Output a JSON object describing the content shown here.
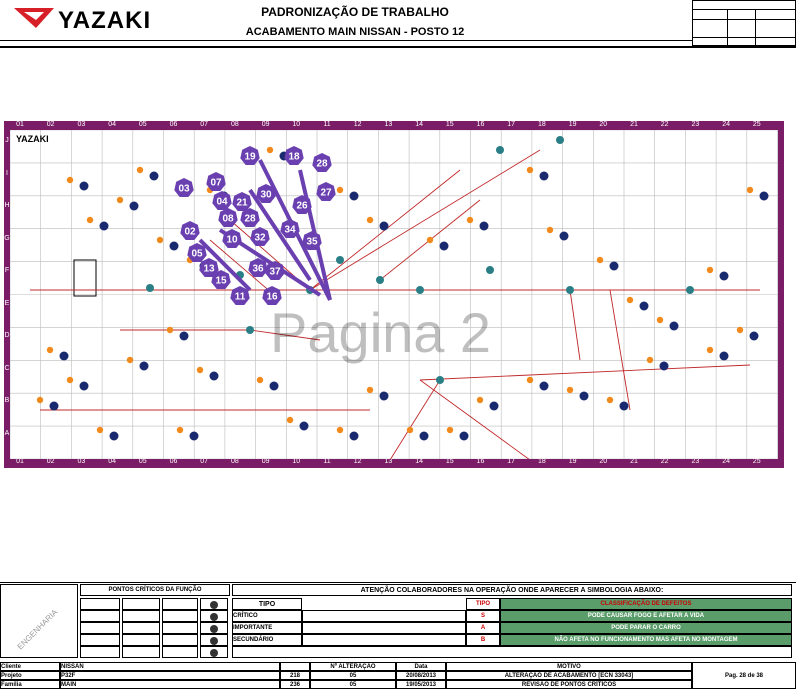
{
  "header": {
    "company": "YAZAKI",
    "title": "PADRONIZAÇÃO DE TRABALHO",
    "subtitle": "ACABAMENTO MAIN NISSAN -  POSTO 12"
  },
  "map": {
    "brand": "YAZAKI",
    "columns": [
      "01",
      "02",
      "03",
      "04",
      "05",
      "06",
      "07",
      "08",
      "09",
      "10",
      "11",
      "12",
      "13",
      "14",
      "15",
      "16",
      "17",
      "18",
      "19",
      "20",
      "21",
      "22",
      "23",
      "24",
      "25"
    ],
    "rows": [
      "J",
      "I",
      "H",
      "G",
      "F",
      "E",
      "D",
      "C",
      "B",
      "A"
    ],
    "watermark": "Pagina 2",
    "callouts": [
      "19",
      "18",
      "28",
      "03",
      "07",
      "30",
      "27",
      "04",
      "21",
      "26",
      "08",
      "28",
      "34",
      "02",
      "10",
      "32",
      "35",
      "05",
      "13",
      "36",
      "37",
      "15",
      "11",
      "16"
    ]
  },
  "legend": {
    "pc_header": "PONTOS CRÍTICOS DA FUNÇÃO",
    "attention": "ATENÇÃO COLABORADORES NA OPERAÇÃO ONDE APARECER A SIMBOLOGIA ABAIXO:",
    "tipo": "TIPO",
    "tipo2": "TIPO",
    "classif": "CLASSIFICAÇÃO DE DEFEITOS",
    "rows": [
      {
        "type": "CRÍTICO",
        "code": "S",
        "desc": "PODE CAUSAR FOGO E AFETAR A VIDA"
      },
      {
        "type": "IMPORTANTE",
        "code": "A",
        "desc": "PODE PARAR O CARRO"
      },
      {
        "type": "SECUNDÁRIO",
        "code": "B",
        "desc": "NÃO AFETA NO FUNCIONAMENTO MAS AFETA NO MONTAGEM"
      }
    ],
    "engenharia": "ENGENHARIA"
  },
  "footer": {
    "cliente_label": "Cliente",
    "cliente": "NISSAN",
    "projeto_label": "Projeto",
    "projeto": "P32F",
    "familia_label": "Família",
    "familia": "MAIN",
    "alteracao_label": "Nº ALTERAÇÃO",
    "data_label": "Data",
    "motivo_label": "MOTIVO",
    "revs": [
      {
        "n": "218",
        "alt": "05",
        "data": "20/08/2013",
        "motivo": "ALTERAÇÃO DE ACABAMENTO [ECN 33043]"
      },
      {
        "n": "236",
        "alt": "05",
        "data": "19/05/2013",
        "motivo": "REVISÃO DE PONTOS CRÍTICOS"
      }
    ],
    "page": "Pag. 28 de 38"
  }
}
